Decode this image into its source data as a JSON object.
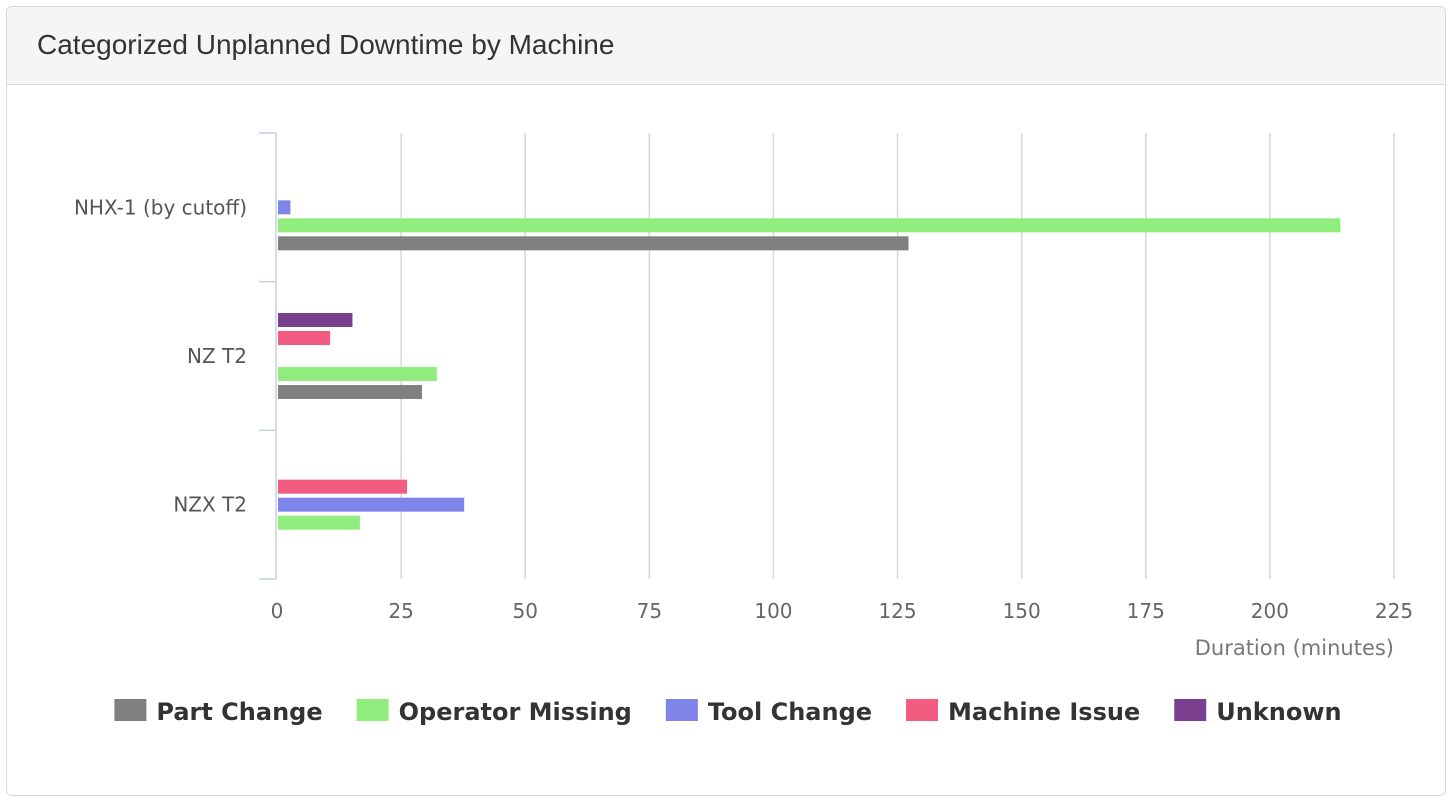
{
  "panel": {
    "title": "Categorized Unplanned Downtime by Machine"
  },
  "chart_data": {
    "type": "bar",
    "orientation": "horizontal",
    "title": "",
    "xlabel": "Duration (minutes)",
    "ylabel": "",
    "xlim": [
      0,
      225
    ],
    "xticks": [
      0,
      25,
      50,
      75,
      100,
      125,
      150,
      175,
      200,
      225
    ],
    "grid": true,
    "legend_position": "bottom",
    "categories": [
      "NHX-1 (by cutoff)",
      "NZ T2",
      "NZX T2"
    ],
    "series": [
      {
        "name": "Part Change",
        "color": "#808080",
        "values": [
          127,
          29,
          0
        ]
      },
      {
        "name": "Operator Missing",
        "color": "#90ed7d",
        "values": [
          214,
          32,
          16.5
        ]
      },
      {
        "name": "Tool Change",
        "color": "#8085e9",
        "values": [
          2.5,
          0,
          37.5
        ]
      },
      {
        "name": "Machine Issue",
        "color": "#f15c80",
        "values": [
          0,
          10.5,
          26
        ]
      },
      {
        "name": "Unknown",
        "color": "#7b3f8f",
        "values": [
          0,
          15,
          0
        ]
      }
    ]
  }
}
